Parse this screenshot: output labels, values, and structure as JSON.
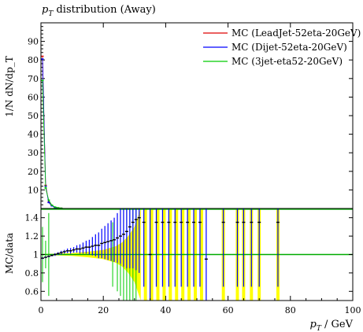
{
  "chart_data": [
    {
      "type": "line",
      "panel": "main",
      "title": "p_T distribution (Away)",
      "title_main": "p",
      "title_sub": "T",
      "title_rest": " distribution (Away)",
      "ylabel": "1/N dN/dp_T",
      "ylim": [
        0,
        100
      ],
      "yticks": [
        10,
        20,
        30,
        40,
        50,
        60,
        70,
        80,
        90
      ],
      "xlim": [
        0,
        100
      ],
      "legend_position": "top-right",
      "series": [
        {
          "name": "MC (LeadJet-52eta-20GeV)",
          "color": "#dd0000",
          "x": [
            0.5,
            1.5,
            2.5,
            3.5,
            4.5,
            5.5,
            6.5
          ],
          "y": [
            82,
            12.5,
            3.5,
            1.6,
            0.7,
            0.35,
            0.15
          ]
        },
        {
          "name": "MC (Dijet-52eta-20GeV)",
          "color": "#0000ff",
          "x": [
            0.5,
            1.5,
            2.5,
            3.5,
            4.5,
            5.5,
            6.5
          ],
          "y": [
            80.5,
            12,
            3.2,
            1.4,
            0.6,
            0.3,
            0.12
          ]
        },
        {
          "name": "MC (3jet-eta52-20GeV)",
          "color": "#00cc00",
          "x": [
            0.5,
            1.5,
            2.5,
            3.5,
            4.5,
            5.5,
            6.5
          ],
          "y": [
            69,
            11,
            4.5,
            1.8,
            0.8,
            0.4,
            0.18
          ]
        }
      ]
    },
    {
      "type": "line",
      "panel": "ratio",
      "ylabel": "MC/data",
      "xlabel": "p_T / GeV",
      "xlabel_main": "p",
      "xlabel_sub": "T",
      "xlabel_rest": " / GeV",
      "xlim": [
        0,
        100
      ],
      "ylim": [
        0.5,
        1.5
      ],
      "yticks": [
        0.6,
        0.8,
        1,
        1.2,
        1.4
      ],
      "xticks": [
        0,
        20,
        40,
        60,
        80,
        100
      ],
      "reference_band_color": "#ffff00",
      "reference_band": [
        {
          "x": 1,
          "half": 0.005
        },
        {
          "x": 5,
          "half": 0.01
        },
        {
          "x": 10,
          "half": 0.015
        },
        {
          "x": 15,
          "half": 0.03
        },
        {
          "x": 20,
          "half": 0.05
        },
        {
          "x": 24,
          "half": 0.09
        },
        {
          "x": 26,
          "half": 0.13
        },
        {
          "x": 28,
          "half": 0.2
        },
        {
          "x": 30,
          "half": 0.3
        },
        {
          "x": 32,
          "half": 0.5
        }
      ],
      "yellow_bins": [
        {
          "x": 33.5,
          "w": 1
        },
        {
          "x": 35.5,
          "w": 1
        },
        {
          "x": 37.5,
          "w": 1
        },
        {
          "x": 39.5,
          "w": 1
        },
        {
          "x": 41.5,
          "w": 1
        },
        {
          "x": 43.5,
          "w": 1
        },
        {
          "x": 45.5,
          "w": 1
        },
        {
          "x": 47.5,
          "w": 1
        },
        {
          "x": 49.5,
          "w": 1
        },
        {
          "x": 51.5,
          "w": 1
        },
        {
          "x": 58.5,
          "w": 1
        },
        {
          "x": 63,
          "w": 1
        },
        {
          "x": 65,
          "w": 1
        },
        {
          "x": 67.5,
          "w": 1
        },
        {
          "x": 70,
          "w": 1
        },
        {
          "x": 76,
          "w": 1
        }
      ],
      "lines": [
        {
          "color": "#00aa00",
          "y": 1.0
        }
      ],
      "ratio_points": [
        {
          "x": 0.5,
          "y": 0.96,
          "err": 0.01
        },
        {
          "x": 1.5,
          "y": 0.97,
          "err": 0.01
        },
        {
          "x": 2.5,
          "y": 0.98,
          "err": 0.01
        },
        {
          "x": 3.5,
          "y": 0.99,
          "err": 0.01
        },
        {
          "x": 4.5,
          "y": 1.0,
          "err": 0.015
        },
        {
          "x": 5.5,
          "y": 1.01,
          "err": 0.015
        },
        {
          "x": 6.5,
          "y": 1.02,
          "err": 0.02
        },
        {
          "x": 7.5,
          "y": 1.03,
          "err": 0.02
        },
        {
          "x": 8.5,
          "y": 1.04,
          "err": 0.025
        },
        {
          "x": 9.5,
          "y": 1.04,
          "err": 0.03
        },
        {
          "x": 10.5,
          "y": 1.05,
          "err": 0.03
        },
        {
          "x": 11.5,
          "y": 1.06,
          "err": 0.04
        },
        {
          "x": 12.5,
          "y": 1.06,
          "err": 0.05
        },
        {
          "x": 13.5,
          "y": 1.07,
          "err": 0.06
        },
        {
          "x": 14.5,
          "y": 1.08,
          "err": 0.07
        },
        {
          "x": 15.5,
          "y": 1.08,
          "err": 0.08
        },
        {
          "x": 16.5,
          "y": 1.09,
          "err": 0.1
        },
        {
          "x": 17.5,
          "y": 1.1,
          "err": 0.12
        },
        {
          "x": 18.5,
          "y": 1.1,
          "err": 0.14
        },
        {
          "x": 19.5,
          "y": 1.12,
          "err": 0.16
        },
        {
          "x": 20.5,
          "y": 1.13,
          "err": 0.18
        },
        {
          "x": 21.5,
          "y": 1.14,
          "err": 0.2
        },
        {
          "x": 22.5,
          "y": 1.15,
          "err": 0.22
        },
        {
          "x": 23.5,
          "y": 1.16,
          "err": 0.24
        },
        {
          "x": 24.5,
          "y": 1.18,
          "err": 0.27
        },
        {
          "x": 25.5,
          "y": 1.2,
          "err": 0.3
        },
        {
          "x": 26.5,
          "y": 1.22,
          "err": 0.35
        },
        {
          "x": 27.5,
          "y": 1.25,
          "err": 0.4
        },
        {
          "x": 28.5,
          "y": 1.3,
          "err": 0.45
        },
        {
          "x": 29.5,
          "y": 1.35,
          "err": 0.5
        },
        {
          "x": 30.5,
          "y": 1.38,
          "err": 0.55
        },
        {
          "x": 31.5,
          "y": 1.4,
          "err": 0.6
        },
        {
          "x": 33,
          "y": 1.35,
          "err": 0.7
        },
        {
          "x": 35,
          "y": 1.0,
          "err": 0.7
        },
        {
          "x": 37,
          "y": 1.35,
          "err": 0.7
        },
        {
          "x": 39,
          "y": 1.35,
          "err": 0.7
        },
        {
          "x": 41,
          "y": 1.35,
          "err": 0.7
        },
        {
          "x": 43,
          "y": 1.35,
          "err": 0.7
        },
        {
          "x": 45,
          "y": 1.35,
          "err": 0.7
        },
        {
          "x": 47,
          "y": 1.35,
          "err": 0.7
        },
        {
          "x": 49,
          "y": 1.35,
          "err": 0.7
        },
        {
          "x": 51,
          "y": 1.35,
          "err": 0.7
        },
        {
          "x": 53,
          "y": 0.95,
          "err": 0.7
        },
        {
          "x": 58.5,
          "y": 1.35,
          "err": 0.7
        },
        {
          "x": 63,
          "y": 1.35,
          "err": 0.7
        },
        {
          "x": 65,
          "y": 1.35,
          "err": 0.7
        },
        {
          "x": 67.5,
          "y": 1.35,
          "err": 0.7
        },
        {
          "x": 70,
          "y": 1.35,
          "err": 0.7
        },
        {
          "x": 76,
          "y": 1.35,
          "err": 0.7
        }
      ],
      "ratio_color": "#0000ff",
      "ratio_errbar_color": "#000000",
      "green_spikes": [
        {
          "x": 0.5,
          "y": 1.3
        },
        {
          "x": 1.5,
          "y": 1.15
        },
        {
          "x": 2.5,
          "y": 1.45
        },
        {
          "x": 23,
          "y": 1.35
        },
        {
          "x": 24.5,
          "y": 1.4
        },
        {
          "x": 25.5,
          "y": 1.45
        },
        {
          "x": 26.5,
          "y": 1.5
        },
        {
          "x": 27.5,
          "y": 1.5
        },
        {
          "x": 28.5,
          "y": 1.5
        },
        {
          "x": 29.5,
          "y": 1.5
        },
        {
          "x": 30.5,
          "y": 1.5
        }
      ]
    }
  ]
}
